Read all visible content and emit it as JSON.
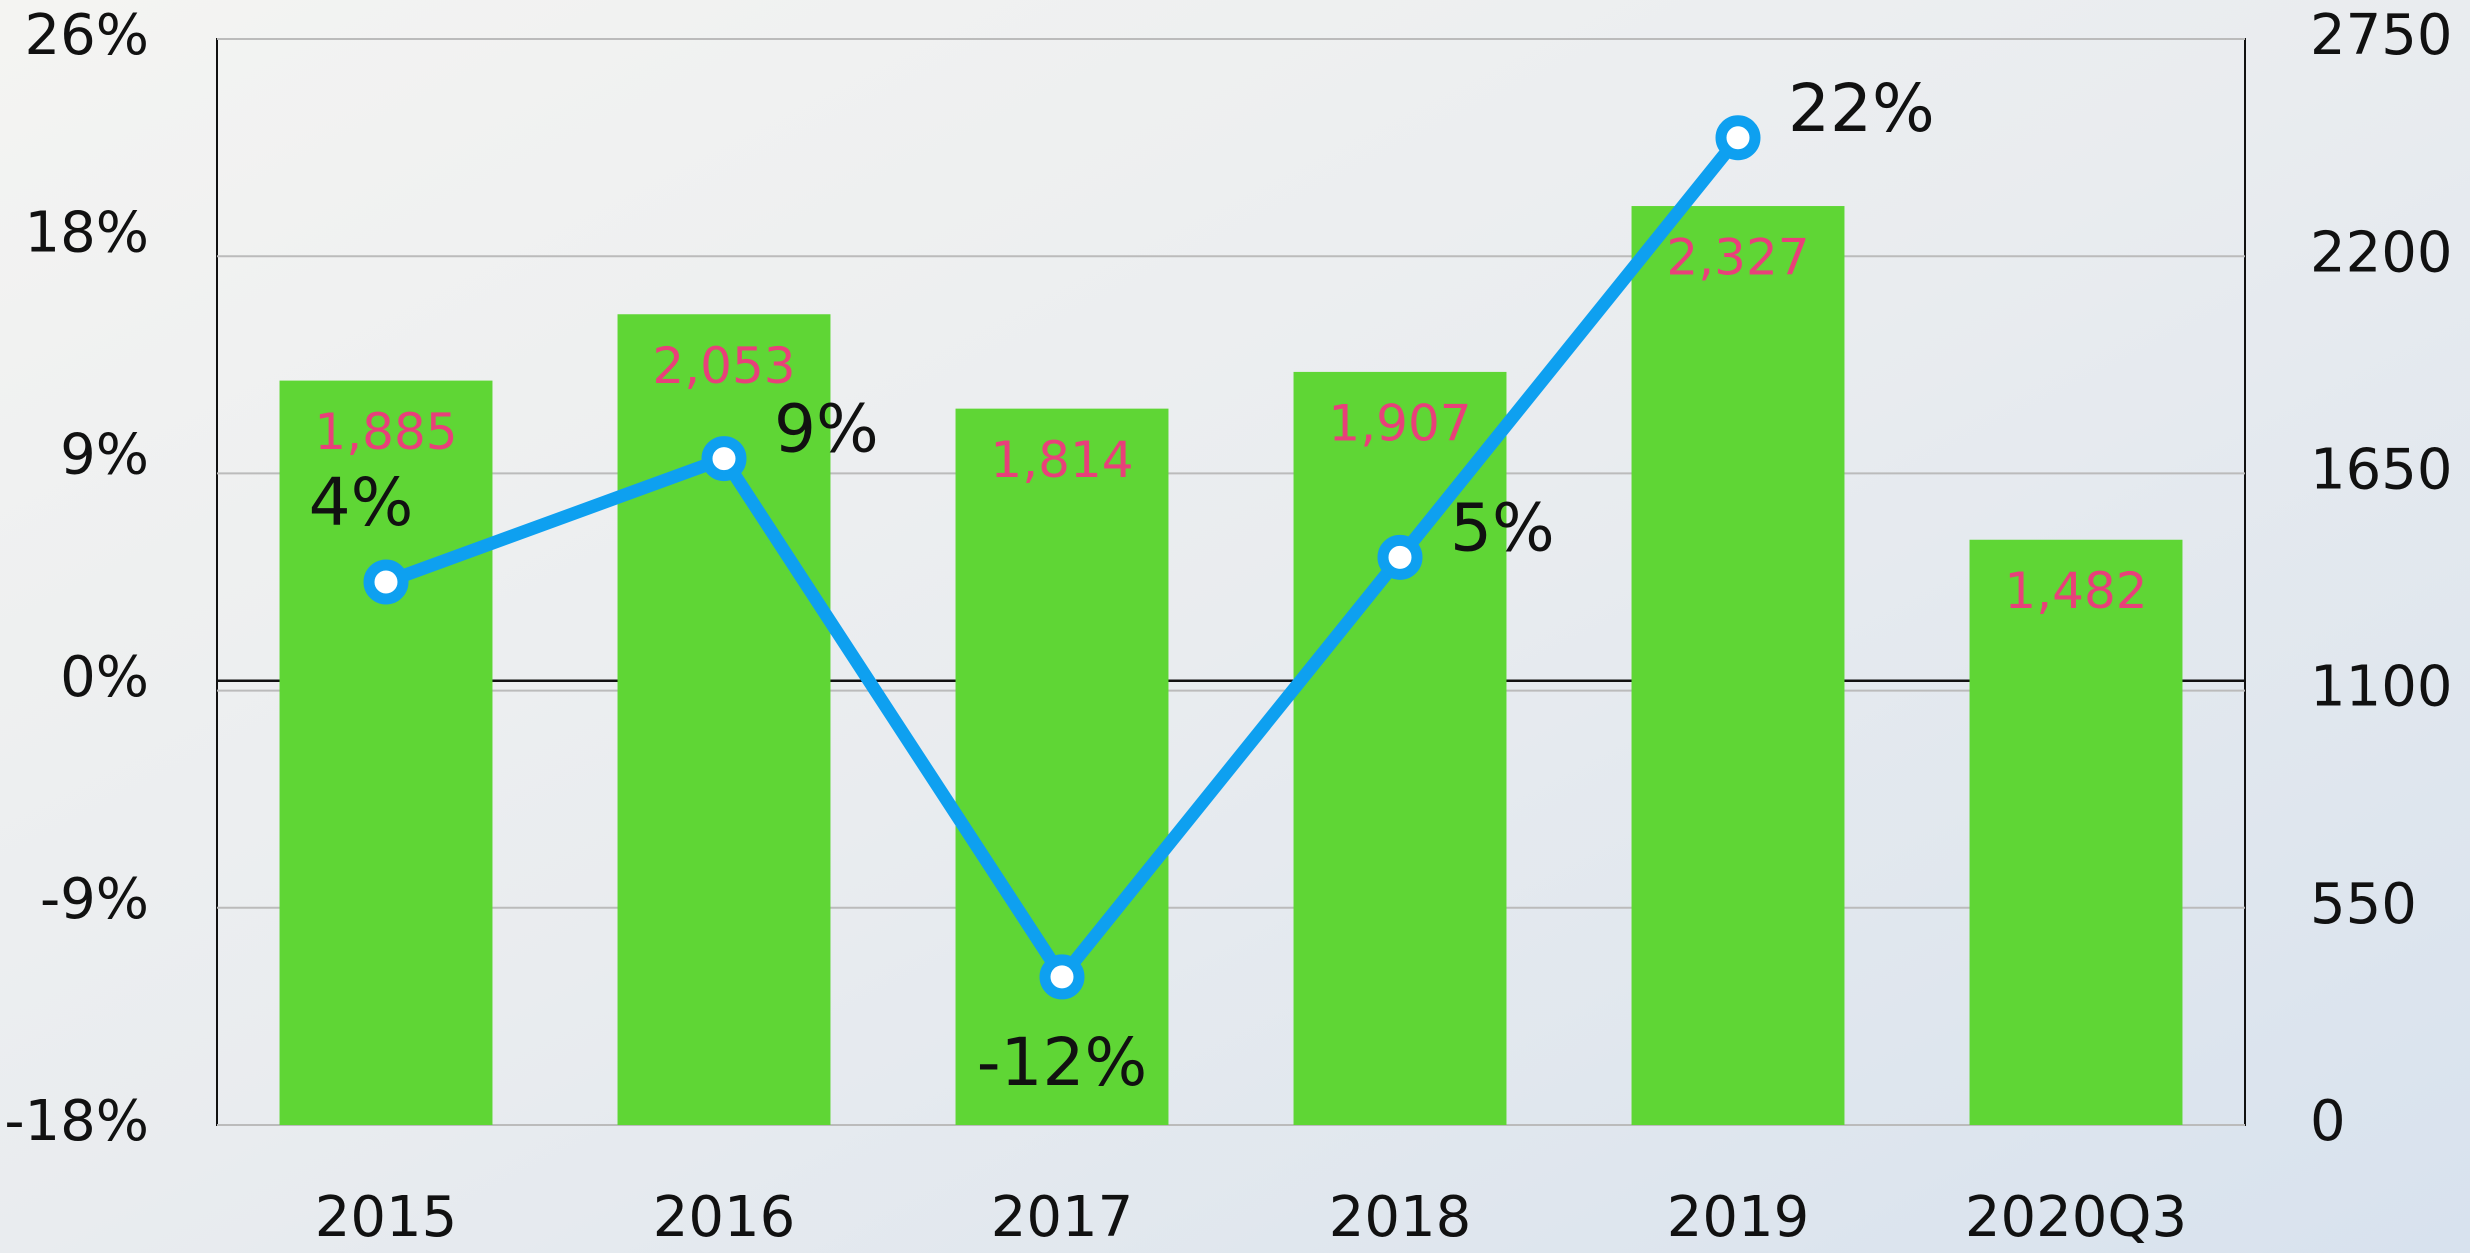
{
  "chart_data": {
    "type": "bar_line",
    "categories": [
      "2015",
      "2016",
      "2017",
      "2018",
      "2019",
      "2020Q3"
    ],
    "series": [
      {
        "type": "bar",
        "axis": "y2",
        "color": "#5fd635",
        "label_color": "#e8407a",
        "values": [
          1885,
          2053,
          1814,
          1907,
          2327,
          1482
        ],
        "value_labels": [
          "1,885",
          "2,053",
          "1,814",
          "1,907",
          "2,327",
          "1,482"
        ]
      },
      {
        "type": "line",
        "axis": "y",
        "color": "#0ea0f0",
        "values": [
          4,
          9,
          -12,
          5,
          22,
          null
        ],
        "value_labels": [
          "4%",
          "9%",
          "-12%",
          "5%",
          "22%",
          null
        ]
      }
    ],
    "ylim": [
      -18,
      26
    ],
    "yticks": [
      {
        "value": -18,
        "label": "-18%"
      },
      {
        "value": -9,
        "label": "-9%"
      },
      {
        "value": 0,
        "label": "0%"
      },
      {
        "value": 9,
        "label": "9%"
      },
      {
        "value": 18,
        "label": "18%"
      },
      {
        "value": 26,
        "label": "26%"
      }
    ],
    "y2lim": [
      0,
      2750
    ],
    "y2ticks": [
      0,
      550,
      1100,
      1650,
      2200,
      2750
    ],
    "grid": true
  }
}
